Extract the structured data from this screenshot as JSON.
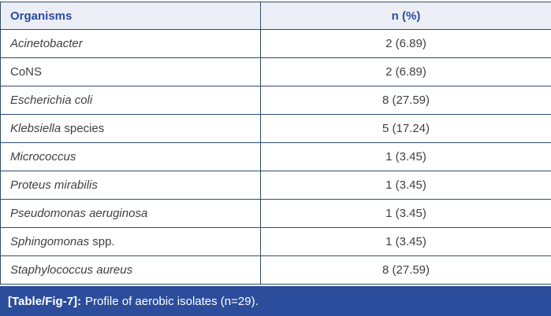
{
  "table": {
    "headers": {
      "organisms": "Organisms",
      "n_pct": "n (%)"
    },
    "rows": [
      {
        "em": "Acinetobacter",
        "rest": "",
        "value": "2 (6.89)"
      },
      {
        "em": "",
        "rest": "CoNS",
        "value": "2 (6.89)"
      },
      {
        "em": "Escherichia coli",
        "rest": "",
        "value": "8 (27.59)"
      },
      {
        "em": "Klebsiella",
        "rest": " species",
        "value": "5 (17.24)"
      },
      {
        "em": "Micrococcus",
        "rest": "",
        "value": "1 (3.45)"
      },
      {
        "em": "Proteus mirabilis",
        "rest": "",
        "value": "1 (3.45)"
      },
      {
        "em": "Pseudomonas aeruginosa",
        "rest": "",
        "value": "1 (3.45)"
      },
      {
        "em": "Sphingomonas",
        "rest": " spp.",
        "value": "1 (3.45)"
      },
      {
        "em": "Staphylococcus aureus",
        "rest": "",
        "value": "8 (27.59)"
      }
    ]
  },
  "caption": {
    "label": "[Table/Fig-7]:",
    "text": "Profile of aerobic isolates (n=29)."
  },
  "colors": {
    "header_bg": "#eceef6",
    "header_text": "#2a4b9e",
    "border": "#2e4d6b",
    "body_text": "#404042",
    "caption_bg": "#2b4d9b",
    "caption_text": "#ffffff"
  }
}
